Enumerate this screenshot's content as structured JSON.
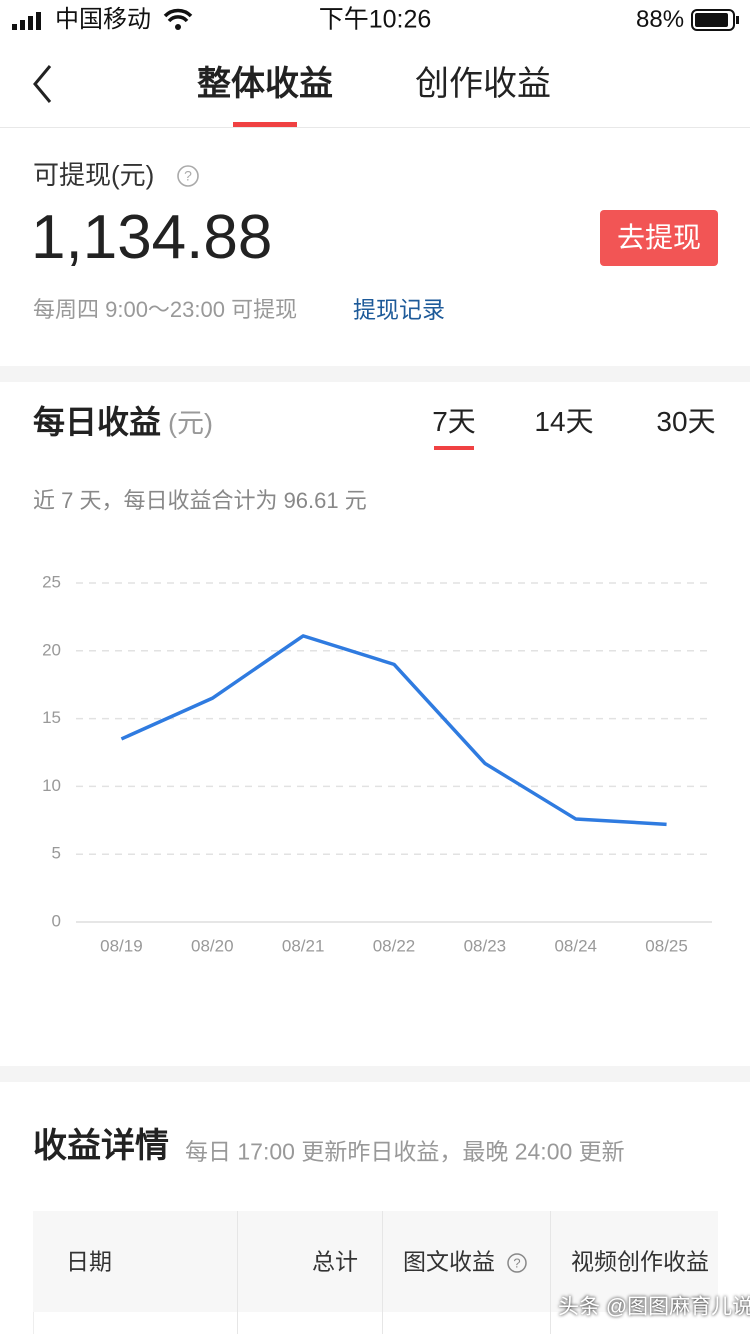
{
  "status_bar": {
    "carrier": "中国移动",
    "time": "下午10:26",
    "battery": "88%"
  },
  "nav": {
    "tabs": [
      "整体收益",
      "创作收益"
    ]
  },
  "balance": {
    "label": "可提现(元)",
    "amount": "1,134.88",
    "button": "去提现",
    "schedule": "每周四 9:00～23:00 可提现",
    "link": "提现记录"
  },
  "daily": {
    "title": "每日收益",
    "unit": "(元)",
    "ranges": [
      "7天",
      "14天",
      "30天"
    ],
    "summary": "近 7 天，每日收益合计为 96.61 元"
  },
  "chart_data": {
    "type": "line",
    "categories": [
      "08/19",
      "08/20",
      "08/21",
      "08/22",
      "08/23",
      "08/24",
      "08/25"
    ],
    "values": [
      13.5,
      16.5,
      21.1,
      19.0,
      11.7,
      7.6,
      7.2
    ],
    "color": "#2f7be0",
    "ylim": [
      0,
      25
    ],
    "yticks": [
      0,
      5,
      10,
      15,
      20,
      25
    ],
    "grid": true
  },
  "details": {
    "title": "收益详情",
    "note": "每日 17:00 更新昨日收益，最晚 24:00 更新",
    "columns": [
      "日期",
      "总计",
      "图文收益",
      "视频创作收益"
    ]
  },
  "watermark": "头条 @图图麻育儿说"
}
